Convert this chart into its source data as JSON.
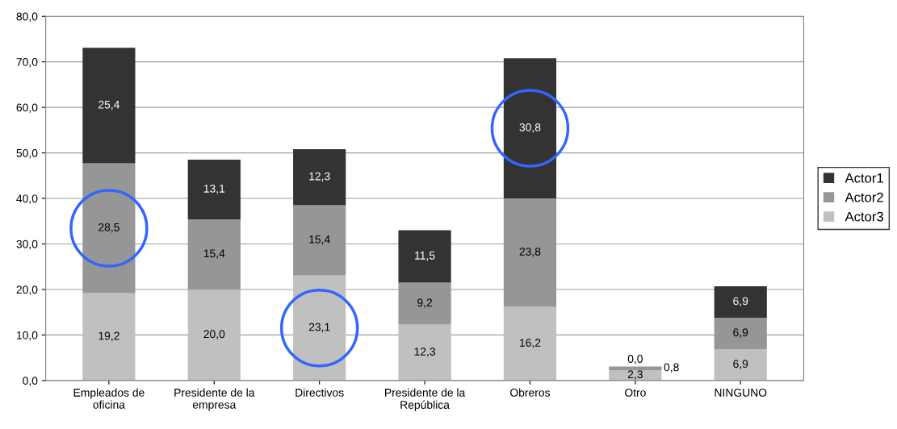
{
  "chart_data": {
    "type": "bar",
    "stacked": true,
    "categories": [
      "Empleados de\noficina",
      "Presidente de la\nempresa",
      "Directivos",
      "Presidente de la\nRepública",
      "Obreros",
      "Otro",
      "NINGUNO"
    ],
    "series": [
      {
        "name": "Actor3",
        "color": "#c0c0c0",
        "values": [
          19.2,
          20.0,
          23.1,
          12.3,
          16.2,
          2.3,
          6.9
        ],
        "value_labels": [
          "19,2",
          "20,0",
          "23,1",
          "12,3",
          "16,2",
          "2,3",
          "6,9"
        ]
      },
      {
        "name": "Actor2",
        "color": "#969696",
        "values": [
          28.5,
          15.4,
          15.4,
          9.2,
          23.8,
          0.8,
          6.9
        ],
        "value_labels": [
          "28,5",
          "15,4",
          "15,4",
          "9,2",
          "23,8",
          "0,8",
          "6,9"
        ]
      },
      {
        "name": "Actor1",
        "color": "#333333",
        "values": [
          25.4,
          13.1,
          12.3,
          11.5,
          30.8,
          0.0,
          6.9
        ],
        "value_labels": [
          "25,4",
          "13,1",
          "12,3",
          "11,5",
          "30,8",
          "0,0",
          "6,9"
        ]
      }
    ],
    "ylim": [
      0,
      80
    ],
    "yticks": [
      {
        "value": 0,
        "label": "0,0"
      },
      {
        "value": 10,
        "label": "10,0"
      },
      {
        "value": 20,
        "label": "20,0"
      },
      {
        "value": 30,
        "label": "30,0"
      },
      {
        "value": 40,
        "label": "40,0"
      },
      {
        "value": 50,
        "label": "50,0"
      },
      {
        "value": 60,
        "label": "60,0"
      },
      {
        "value": 70,
        "label": "70,0"
      },
      {
        "value": 80,
        "label": "80,0"
      }
    ],
    "grid": "y",
    "legend": "right"
  }
}
